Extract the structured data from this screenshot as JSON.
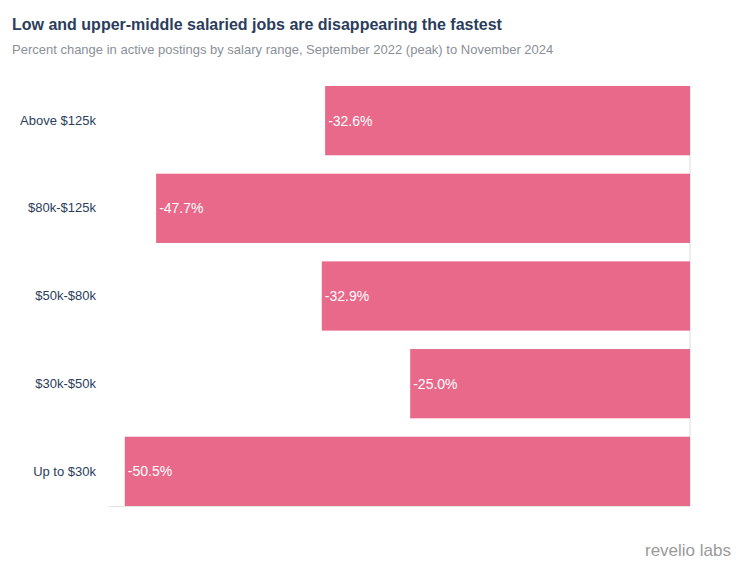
{
  "chart_data": {
    "type": "bar",
    "orientation": "horizontal",
    "title": "Low and upper-middle salaried jobs are disappearing the fastest",
    "subtitle": "Percent change in active postings by salary range, September 2022 (peak) to November 2024",
    "categories": [
      "Above $125k",
      "$80k-$125k",
      "$50k-$80k",
      "$30k-$50k",
      "Up to $30k"
    ],
    "values": [
      -32.6,
      -47.7,
      -32.9,
      -25.0,
      -50.5
    ],
    "value_labels": [
      "-32.6%",
      "-47.7%",
      "-32.9%",
      "-25.0%",
      "-50.5%"
    ],
    "color": "#e8698a",
    "xlim": [
      -52,
      0
    ],
    "xticks": [
      0
    ],
    "grid": true,
    "data_labels": true,
    "tick_labels": "y",
    "caption": "revelio labs"
  }
}
